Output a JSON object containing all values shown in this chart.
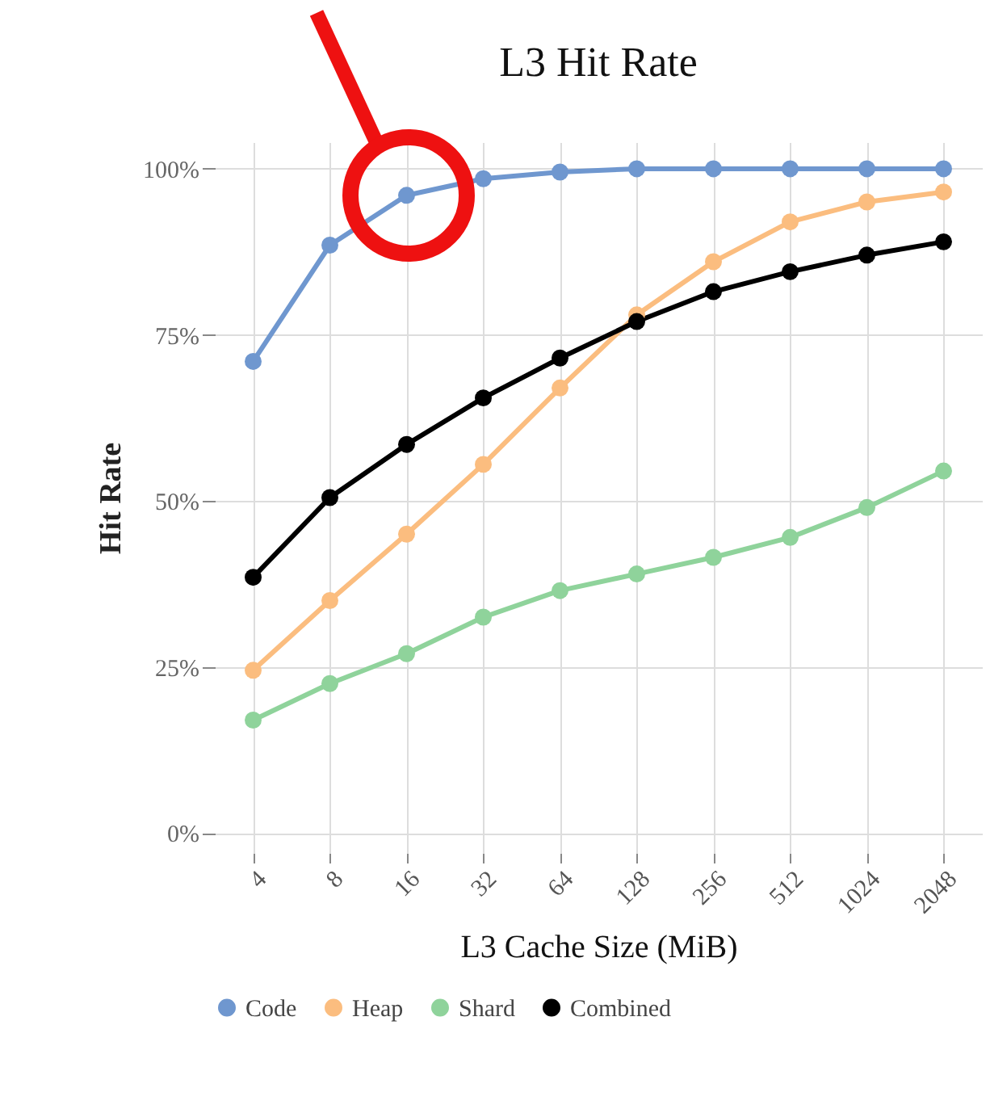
{
  "chart_data": {
    "type": "line",
    "title": "L3 Hit Rate",
    "xlabel": "L3 Cache Size (MiB)",
    "ylabel": "Hit Rate",
    "categories": [
      "4",
      "8",
      "16",
      "32",
      "64",
      "128",
      "256",
      "512",
      "1024",
      "2048"
    ],
    "series": [
      {
        "name": "Code",
        "color": "#6f97cf",
        "values": [
          71,
          88.5,
          96,
          98.5,
          99.5,
          100,
          100,
          100,
          100,
          100
        ]
      },
      {
        "name": "Heap",
        "color": "#fbbd7f",
        "values": [
          24.5,
          35,
          45,
          55.5,
          67,
          78,
          86,
          92,
          95,
          96.5
        ]
      },
      {
        "name": "Shard",
        "color": "#8fd39b",
        "values": [
          17,
          22.5,
          27,
          32.5,
          36.5,
          39,
          41.5,
          44.5,
          49,
          54.5
        ]
      },
      {
        "name": "Combined",
        "color": "#000000",
        "values": [
          38.5,
          50.5,
          58.5,
          65.5,
          71.5,
          77,
          81.5,
          84.5,
          87,
          89
        ]
      }
    ],
    "ylim": [
      -3,
      104
    ],
    "yticks": [
      {
        "value": 0,
        "label": "0%"
      },
      {
        "value": 25,
        "label": "25%"
      },
      {
        "value": 50,
        "label": "50%"
      },
      {
        "value": 75,
        "label": "75%"
      },
      {
        "value": 100,
        "label": "100%"
      }
    ],
    "grid": true,
    "legend": "bottom",
    "marker": "circle",
    "line_style": "solid"
  }
}
